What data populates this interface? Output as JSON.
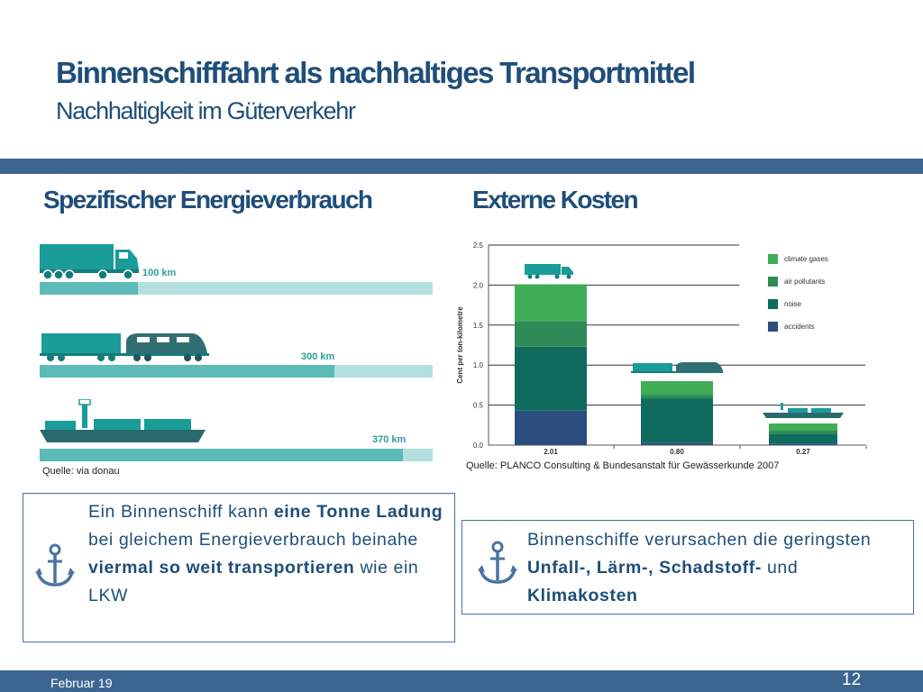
{
  "slide": {
    "title": "Binnenschifffahrt als nachhaltiges Transportmittel",
    "subtitle": "Nachhaltigkeit im Güterverkehr"
  },
  "left": {
    "heading": "Spezifischer Energieverbrauch",
    "source": "Quelle: via donau",
    "rows": [
      {
        "vehicle": "truck",
        "label": "100 km",
        "value": 100
      },
      {
        "vehicle": "train",
        "label": "300 km",
        "value": 300
      },
      {
        "vehicle": "ship",
        "label": "370 km",
        "value": 370
      }
    ],
    "info": {
      "p1": "Ein Binnenschiff kann ",
      "b1": "eine Tonne Ladung",
      "p2": " bei gleichem Energieverbrauch beinahe ",
      "b2": "viermal so weit transportieren",
      "p3": " wie ein LKW"
    }
  },
  "right": {
    "heading": "Externe Kosten",
    "source": "Quelle: PLANCO Consulting & Bundesanstalt für Gewässerkunde 2007",
    "info": {
      "p1": "Binnenschiffe verursachen die geringsten ",
      "b1": "Unfall-, Lärm-, Schadstoff-",
      "p2": " und ",
      "b2": "Klimakosten"
    }
  },
  "icons": {
    "anchor": "anchor-icon",
    "truck": "truck-icon",
    "train": "train-icon",
    "ship": "ship-icon"
  },
  "colors": {
    "brand": "#1f4e79",
    "bar": "#3d6591",
    "accent_teal": "#5cbab7",
    "light_teal": "#b3e0df"
  },
  "chart_data": {
    "type": "bar",
    "stacked": true,
    "categories": [
      "2.01",
      "0.80",
      "0.27"
    ],
    "ylabel": "Cent per ton-kilometre",
    "ylim": [
      0,
      2.5
    ],
    "yticks": [
      0.0,
      0.5,
      1.0,
      1.5,
      2.0,
      2.5
    ],
    "ytick_labels": [
      "0.0",
      "0.5",
      "1.0",
      "1.5",
      "2.0",
      "2.5"
    ],
    "grid": true,
    "legend_position": "top-right",
    "series": [
      {
        "name": "accidents",
        "color": "#2b4e7e",
        "values": [
          0.43,
          0.03,
          0.02
        ]
      },
      {
        "name": "noise",
        "color": "#0f6b5d",
        "values": [
          0.8,
          0.55,
          0.12
        ]
      },
      {
        "name": "air pollutants",
        "color": "#2e8b57",
        "values": [
          0.32,
          0.05,
          0.04
        ]
      },
      {
        "name": "climate gases",
        "color": "#3fae57",
        "values": [
          0.46,
          0.17,
          0.09
        ]
      }
    ],
    "legend_order": [
      "climate gases",
      "air pollutants",
      "noise",
      "accidents"
    ]
  }
}
